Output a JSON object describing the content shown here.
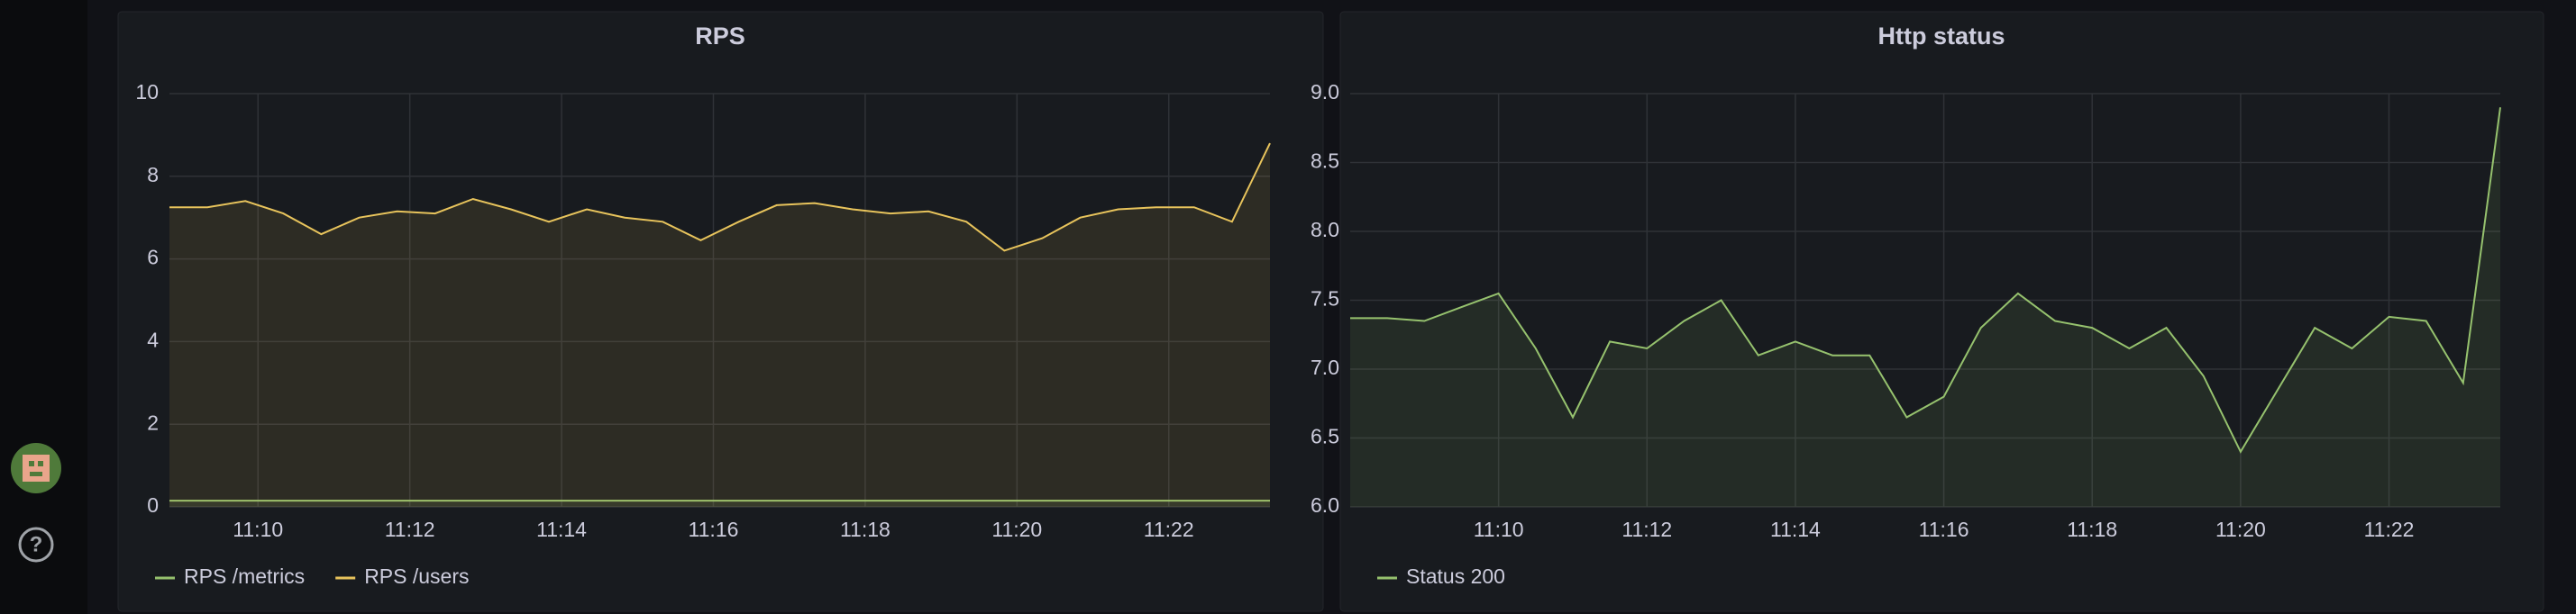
{
  "chart_data": [
    {
      "type": "line",
      "title": "RPS",
      "x": [
        "11:08:50",
        "11:09:20",
        "11:09:50",
        "11:10:20",
        "11:10:50",
        "11:11:20",
        "11:11:50",
        "11:12:20",
        "11:12:50",
        "11:13:20",
        "11:13:50",
        "11:14:20",
        "11:14:50",
        "11:15:20",
        "11:15:50",
        "11:16:20",
        "11:16:50",
        "11:17:20",
        "11:17:50",
        "11:18:20",
        "11:18:50",
        "11:19:20",
        "11:19:50",
        "11:20:20",
        "11:20:50",
        "11:21:20",
        "11:21:50",
        "11:22:20",
        "11:22:50",
        "11:23:20"
      ],
      "series": [
        {
          "name": "RPS /metrics",
          "color": "#96C26E",
          "values": [
            0.15,
            0.15,
            0.15,
            0.15,
            0.15,
            0.15,
            0.15,
            0.15,
            0.15,
            0.15,
            0.15,
            0.15,
            0.15,
            0.15,
            0.15,
            0.15,
            0.15,
            0.15,
            0.15,
            0.15,
            0.15,
            0.15,
            0.15,
            0.15,
            0.15,
            0.15,
            0.15,
            0.15,
            0.15,
            0.15
          ]
        },
        {
          "name": "RPS /users",
          "color": "#E8C45C",
          "values": [
            7.25,
            7.25,
            7.4,
            7.1,
            6.6,
            7.0,
            7.15,
            7.1,
            7.45,
            7.2,
            6.9,
            7.2,
            7.0,
            6.9,
            6.45,
            6.9,
            7.3,
            7.35,
            7.2,
            7.1,
            7.15,
            6.9,
            6.2,
            6.5,
            7.0,
            7.2,
            7.25,
            7.25,
            6.9,
            8.8
          ]
        }
      ],
      "xlim": [
        "11:08:50",
        "11:23:20"
      ],
      "xticks": [
        "11:10",
        "11:12",
        "11:14",
        "11:16",
        "11:18",
        "11:20",
        "11:22"
      ],
      "ylim": [
        0,
        10
      ],
      "yticks": [
        0,
        2,
        4,
        6,
        8,
        10
      ],
      "grid": true,
      "legend": "bottom"
    },
    {
      "type": "line",
      "title": "Http status",
      "x": [
        "11:08:00",
        "11:08:30",
        "11:09:00",
        "11:09:30",
        "11:10:00",
        "11:10:30",
        "11:11:00",
        "11:11:30",
        "11:12:00",
        "11:12:30",
        "11:13:00",
        "11:13:30",
        "11:14:00",
        "11:14:30",
        "11:15:00",
        "11:15:30",
        "11:16:00",
        "11:16:30",
        "11:17:00",
        "11:17:30",
        "11:18:00",
        "11:18:30",
        "11:19:00",
        "11:19:30",
        "11:20:00",
        "11:20:30",
        "11:21:00",
        "11:21:30",
        "11:22:00",
        "11:22:30",
        "11:23:00",
        "11:23:30"
      ],
      "series": [
        {
          "name": "Status 200",
          "color": "#96C26E",
          "values": [
            7.37,
            7.37,
            7.35,
            7.45,
            7.55,
            7.15,
            6.65,
            7.2,
            7.15,
            7.35,
            7.5,
            7.1,
            7.2,
            7.1,
            7.1,
            6.65,
            6.8,
            7.3,
            7.55,
            7.35,
            7.3,
            7.15,
            7.3,
            6.95,
            6.4,
            6.85,
            7.3,
            7.15,
            7.38,
            7.35,
            6.9,
            8.9
          ]
        }
      ],
      "xlim": [
        "11:08:00",
        "11:23:30"
      ],
      "xticks": [
        "11:10",
        "11:12",
        "11:14",
        "11:16",
        "11:18",
        "11:20",
        "11:22"
      ],
      "ylim": [
        6,
        9
      ],
      "yticks": [
        {
          "value": 6,
          "label": "6.0"
        },
        6.5,
        {
          "value": 7,
          "label": "7.0"
        },
        7.5,
        {
          "value": 8,
          "label": "8.0"
        },
        8.5,
        {
          "value": 9,
          "label": "9.0"
        }
      ],
      "grid": true,
      "legend": "bottom"
    }
  ]
}
